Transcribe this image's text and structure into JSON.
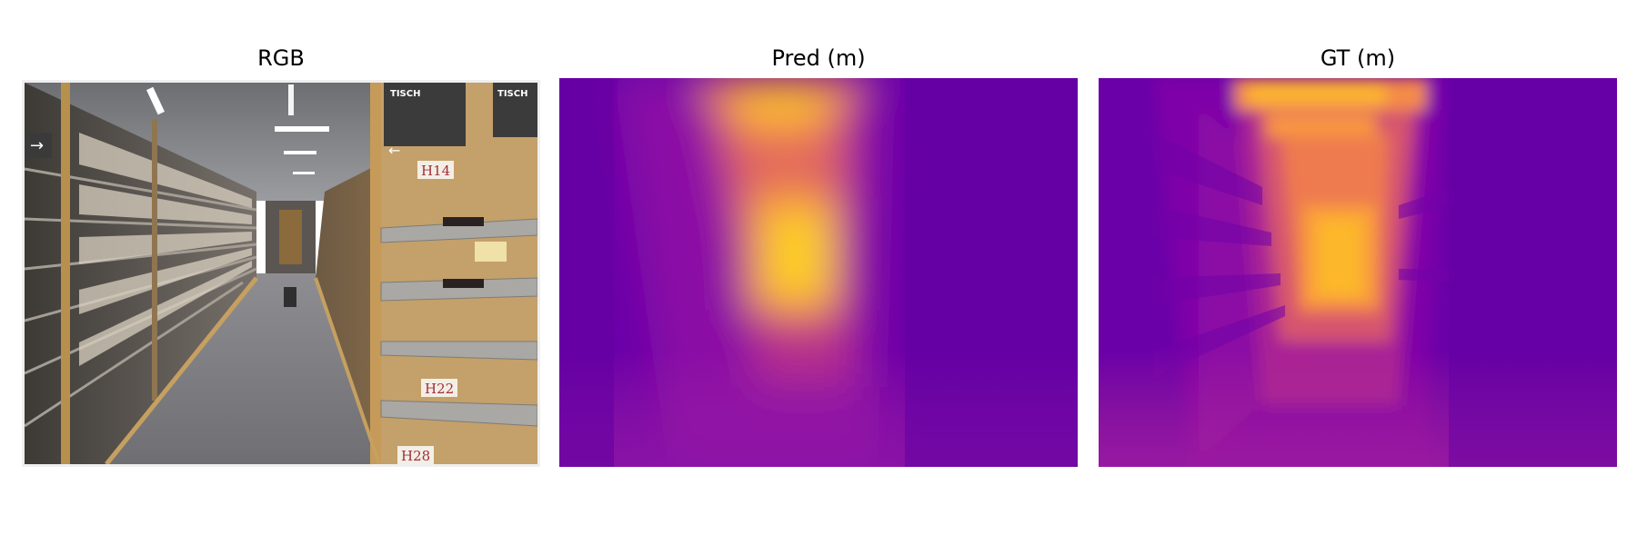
{
  "panels": [
    {
      "id": "rgb",
      "title": "RGB"
    },
    {
      "id": "pred",
      "title": "Pred (m)"
    },
    {
      "id": "gt",
      "title": "GT (m)"
    }
  ],
  "rgb_scene": {
    "shelf_labels": [
      "H14",
      "H22",
      "H28"
    ],
    "store_signs": [
      "TISCH",
      "TISCH"
    ]
  },
  "colormap": "plasma"
}
